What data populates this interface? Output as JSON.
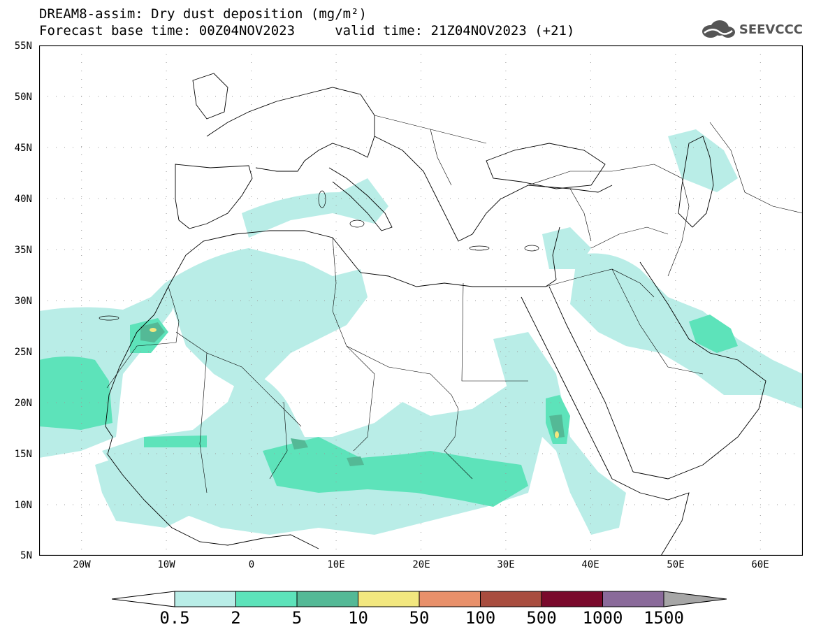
{
  "title": {
    "line1": "DREAM8-assim: Dry dust deposition (mg/m²)",
    "line2": "Forecast base time: 00Z04NOV2023     valid time: 21Z04NOV2023 (+21)"
  },
  "logo": {
    "text": "SEEVCCC",
    "icon": "cloud-logo-icon"
  },
  "map": {
    "lon_range": [
      -25,
      65
    ],
    "lat_range": [
      5,
      55
    ],
    "lat_ticks": [
      "55N",
      "50N",
      "45N",
      "40N",
      "35N",
      "30N",
      "25N",
      "20N",
      "15N",
      "10N",
      "5N"
    ],
    "lon_ticks": [
      "20W",
      "10W",
      "0",
      "10E",
      "20E",
      "30E",
      "40E",
      "50E",
      "60E"
    ],
    "grid": "dotted",
    "land_color": "#ffffff",
    "border_color": "#000000"
  },
  "colorbar": {
    "labels": [
      "0.5",
      "2",
      "5",
      "10",
      "50",
      "100",
      "500",
      "1000",
      "1500"
    ],
    "colors": [
      "#b9ede7",
      "#5de3ba",
      "#54b996",
      "#f2e77f",
      "#e8906a",
      "#a84d3f",
      "#7a0a2c",
      "#8a6a9a",
      "#a6a6a6"
    ]
  }
}
